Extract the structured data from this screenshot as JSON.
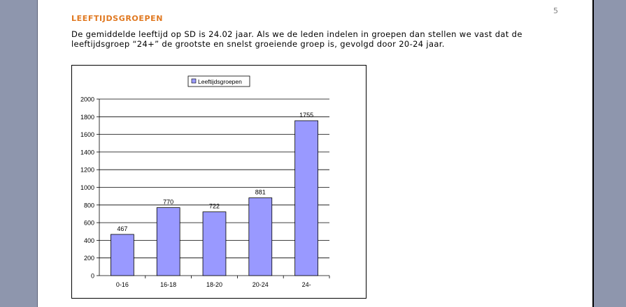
{
  "page_number": "5",
  "heading": "LEEFTIJDSGROEPEN",
  "paragraph": "De gemiddelde leeftijd op SD is 24.02 jaar. Als we de leden indelen in groepen dan stellen we vast dat de leeftijdsgroep “24+” de grootste en snelst groeiende groep is, gevolgd  door 20-24 jaar.",
  "colors": {
    "bar": "#9999ff",
    "heading": "#e07820"
  },
  "chart_data": {
    "type": "bar",
    "categories": [
      "0-16",
      "16-18",
      "18-20",
      "20-24",
      "24-"
    ],
    "series": [
      {
        "name": "Leeftijdsgroepen",
        "values": [
          467,
          770,
          722,
          881,
          1755
        ]
      }
    ],
    "yticks": [
      "0",
      "200",
      "400",
      "600",
      "800",
      "1000",
      "1200",
      "1400",
      "1600",
      "1800",
      "2000"
    ],
    "ylim": [
      0,
      2000
    ],
    "grid": true,
    "legend": "top-center",
    "data_labels": true
  }
}
